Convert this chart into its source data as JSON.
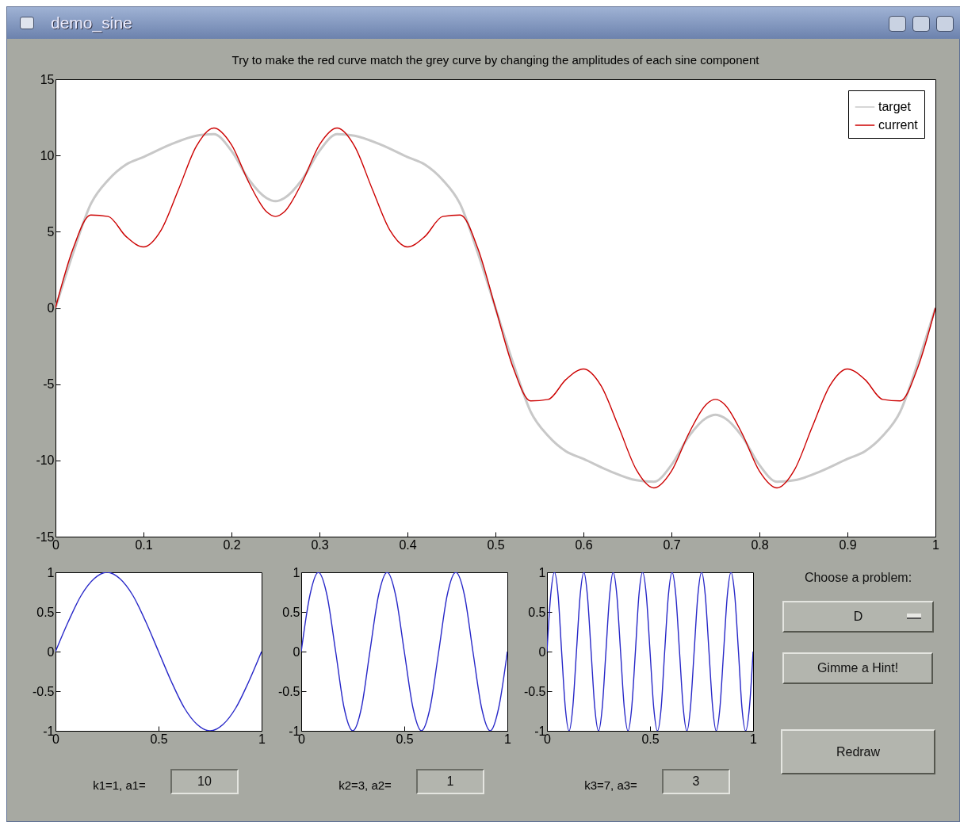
{
  "chart_data": [
    {
      "type": "line",
      "title": "Try to make the red curve match the grey curve by changing the amplitudes of each sine component",
      "legend": "top right",
      "xlim": [
        0,
        1
      ],
      "xticks": [
        0,
        0.1,
        0.2,
        0.3,
        0.4,
        0.5,
        0.6,
        0.7,
        0.8,
        0.9,
        1
      ],
      "ylim": [
        -15,
        15
      ],
      "yticks": [
        -15,
        -10,
        -5,
        0,
        5,
        10,
        15
      ],
      "series": [
        {
          "name": "target",
          "color": "#c8c8c8",
          "x": [
            0,
            0.02,
            0.04,
            0.06,
            0.08,
            0.1,
            0.13,
            0.16,
            0.18,
            0.2,
            0.22,
            0.24,
            0.25,
            0.26,
            0.28,
            0.3,
            0.32,
            0.34,
            0.37,
            0.4,
            0.42,
            0.44,
            0.46,
            0.48,
            0.5,
            0.52,
            0.54,
            0.56,
            0.58,
            0.6,
            0.63,
            0.66,
            0.68,
            0.7,
            0.72,
            0.74,
            0.75,
            0.76,
            0.78,
            0.8,
            0.82,
            0.84,
            0.87,
            0.9,
            0.92,
            0.94,
            0.96,
            0.98,
            1
          ],
          "values": [
            0,
            3.6,
            6.8,
            8.4,
            9.4,
            9.9,
            10.7,
            11.3,
            11.4,
            10.3,
            8.4,
            7.2,
            7.0,
            7.2,
            8.4,
            10.3,
            11.4,
            11.3,
            10.7,
            9.9,
            9.4,
            8.4,
            6.8,
            3.6,
            0,
            -3.6,
            -6.8,
            -8.4,
            -9.4,
            -9.9,
            -10.7,
            -11.3,
            -11.4,
            -10.3,
            -8.4,
            -7.2,
            -7.0,
            -7.2,
            -8.4,
            -10.3,
            -11.4,
            -11.3,
            -10.7,
            -9.9,
            -9.4,
            -8.4,
            -6.8,
            -3.6,
            0
          ]
        },
        {
          "name": "current",
          "color": "#cc0000",
          "x": [
            0,
            0.02,
            0.04,
            0.06,
            0.08,
            0.1,
            0.12,
            0.14,
            0.16,
            0.18,
            0.2,
            0.22,
            0.24,
            0.25,
            0.26,
            0.28,
            0.3,
            0.32,
            0.34,
            0.36,
            0.38,
            0.4,
            0.42,
            0.44,
            0.46,
            0.48,
            0.5,
            0.52,
            0.54,
            0.56,
            0.58,
            0.6,
            0.62,
            0.64,
            0.66,
            0.68,
            0.7,
            0.72,
            0.74,
            0.75,
            0.76,
            0.78,
            0.8,
            0.82,
            0.84,
            0.86,
            0.88,
            0.9,
            0.92,
            0.94,
            0.96,
            0.98,
            1
          ],
          "values": [
            0,
            3.9,
            6.1,
            6.0,
            4.7,
            4.0,
            5.1,
            7.8,
            10.6,
            11.8,
            10.7,
            8.2,
            6.3,
            6.0,
            6.3,
            8.2,
            10.7,
            11.8,
            10.6,
            7.8,
            5.1,
            4.0,
            4.7,
            6.0,
            6.1,
            3.9,
            0,
            -3.9,
            -6.1,
            -6.0,
            -4.7,
            -4.0,
            -5.1,
            -7.8,
            -10.6,
            -11.8,
            -10.7,
            -8.2,
            -6.3,
            -6.0,
            -6.3,
            -8.2,
            -10.7,
            -11.8,
            -10.6,
            -7.8,
            -5.1,
            -4.0,
            -4.7,
            -6.0,
            -6.1,
            -3.9,
            0
          ]
        }
      ]
    },
    {
      "type": "line",
      "xlabel": "k1=1, a1=",
      "annotations": [
        "10"
      ],
      "xlim": [
        0,
        1
      ],
      "xticks": [
        0,
        0.5,
        1
      ],
      "ylim": [
        -1,
        1
      ],
      "yticks": [
        -1,
        -0.5,
        0,
        0.5,
        1
      ],
      "series": [
        {
          "color": "#2828c8",
          "x": [
            0,
            0.0625,
            0.125,
            0.1875,
            0.25,
            0.3125,
            0.375,
            0.4375,
            0.5,
            0.5625,
            0.625,
            0.6875,
            0.75,
            0.8125,
            0.875,
            0.9375,
            1
          ],
          "values": [
            0,
            0.38,
            0.71,
            0.92,
            1,
            0.92,
            0.71,
            0.38,
            0,
            -0.38,
            -0.71,
            -0.92,
            -1,
            -0.92,
            -0.71,
            -0.38,
            0
          ]
        }
      ]
    },
    {
      "type": "line",
      "xlabel": "k2=3, a2=",
      "annotations": [
        "1"
      ],
      "xlim": [
        0,
        1
      ],
      "xticks": [
        0,
        0.5,
        1
      ],
      "ylim": [
        -1,
        1
      ],
      "yticks": [
        -1,
        -0.5,
        0,
        0.5,
        1
      ],
      "series": [
        {
          "color": "#2828c8",
          "x": [
            0,
            0.042,
            0.083,
            0.125,
            0.167,
            0.208,
            0.25,
            0.292,
            0.333,
            0.375,
            0.417,
            0.458,
            0.5,
            0.542,
            0.583,
            0.625,
            0.667,
            0.708,
            0.75,
            0.792,
            0.833,
            0.875,
            0.917,
            0.958,
            1
          ],
          "values": [
            0,
            0.71,
            1,
            0.71,
            0,
            -0.71,
            -1,
            -0.71,
            0,
            0.71,
            1,
            0.71,
            0,
            -0.71,
            -1,
            -0.71,
            0,
            0.71,
            1,
            0.71,
            0,
            -0.71,
            -1,
            -0.71,
            0
          ]
        }
      ]
    },
    {
      "type": "line",
      "xlabel": "k3=7, a3=",
      "annotations": [
        "3"
      ],
      "xlim": [
        0,
        1
      ],
      "xticks": [
        0,
        0.5,
        1
      ],
      "ylim": [
        -1,
        1
      ],
      "yticks": [
        -1,
        -0.5,
        0,
        0.5,
        1
      ],
      "series": [
        {
          "color": "#2828c8",
          "x": [
            0,
            0.018,
            0.036,
            0.054,
            0.071,
            0.089,
            0.107,
            0.125,
            0.143,
            0.161,
            0.179,
            0.196,
            0.214,
            0.232,
            0.25,
            0.268,
            0.286,
            0.304,
            0.321,
            0.339,
            0.357,
            0.375,
            0.393,
            0.411,
            0.429,
            0.446,
            0.464,
            0.482,
            0.5,
            0.518,
            0.536,
            0.554,
            0.571,
            0.589,
            0.607,
            0.625,
            0.643,
            0.661,
            0.679,
            0.696,
            0.714,
            0.732,
            0.75,
            0.768,
            0.786,
            0.804,
            0.821,
            0.839,
            0.857,
            0.875,
            0.893,
            0.911,
            0.929,
            0.946,
            0.964,
            0.982,
            1
          ],
          "values": [
            0,
            0.71,
            1,
            0.71,
            0,
            -0.71,
            -1,
            -0.71,
            0,
            0.71,
            1,
            0.71,
            0,
            -0.71,
            -1,
            -0.71,
            0,
            0.71,
            1,
            0.71,
            0,
            -0.71,
            -1,
            -0.71,
            0,
            0.71,
            1,
            0.71,
            0,
            -0.71,
            -1,
            -0.71,
            0,
            0.71,
            1,
            0.71,
            0,
            -0.71,
            -1,
            -0.71,
            0,
            0.71,
            1,
            0.71,
            0,
            -0.71,
            -1,
            -0.71,
            0,
            0.71,
            1,
            0.71,
            0,
            -0.71,
            -1,
            -0.71,
            0
          ]
        }
      ]
    },
    {
      "type": "other",
      "annotations": [
        "demo_sine",
        "Choose a problem:",
        "D",
        "Gimme a Hint!",
        "Redraw"
      ]
    }
  ]
}
